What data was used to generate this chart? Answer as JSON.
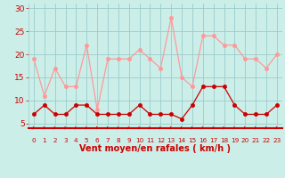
{
  "x": [
    0,
    1,
    2,
    3,
    4,
    5,
    6,
    7,
    8,
    9,
    10,
    11,
    12,
    13,
    14,
    15,
    16,
    17,
    18,
    19,
    20,
    21,
    22,
    23
  ],
  "y_rafales": [
    19,
    11,
    17,
    13,
    13,
    22,
    8,
    19,
    19,
    19,
    21,
    19,
    17,
    28,
    15,
    13,
    24,
    24,
    22,
    22,
    19,
    19,
    17,
    20
  ],
  "y_moyen": [
    7,
    9,
    7,
    7,
    9,
    9,
    7,
    7,
    7,
    7,
    9,
    7,
    7,
    7,
    6,
    9,
    13,
    13,
    13,
    9,
    7,
    7,
    7,
    9
  ],
  "bg_color": "#cceee8",
  "grid_color": "#99cccc",
  "line_color_rafales": "#ff9999",
  "line_color_moyen": "#cc0000",
  "ylim_min": 4,
  "ylim_max": 31,
  "yticks": [
    5,
    10,
    15,
    20,
    25,
    30
  ],
  "xlabel": "Vent moyen/en rafales ( km/h )",
  "xlabel_color": "#cc0000",
  "tick_color": "#cc0000",
  "spine_bottom_color": "#cc0000",
  "marker_size": 3,
  "line_width": 0.9
}
